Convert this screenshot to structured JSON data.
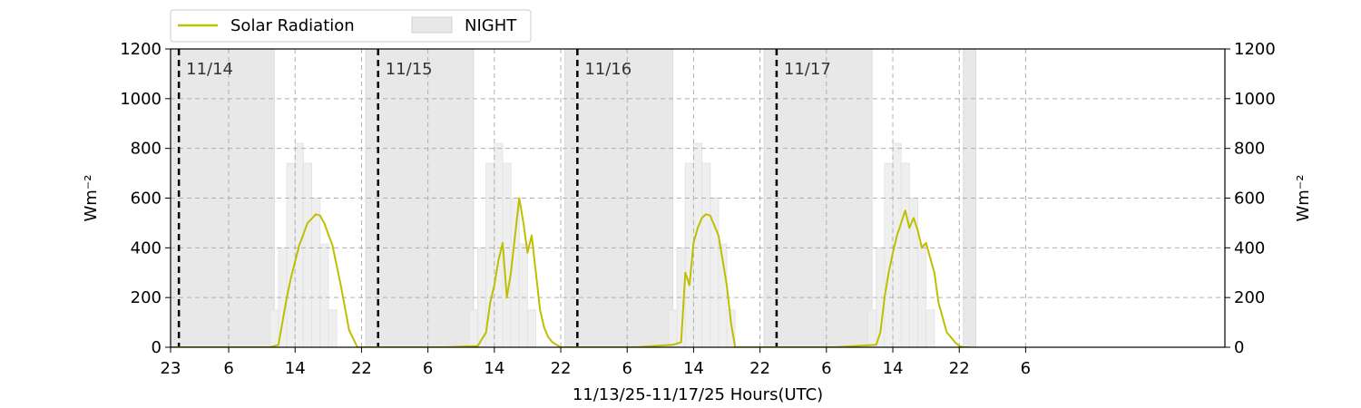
{
  "chart_data": {
    "type": "line",
    "title": "",
    "xlabel": "11/13/25-11/17/25  Hours(UTC)",
    "ylabel_left": "Wm⁻²",
    "ylabel_right": "Wm⁻²",
    "ylim": [
      0,
      1200
    ],
    "yticks": [
      0,
      200,
      400,
      600,
      800,
      1000,
      1200
    ],
    "x_unit": "hours since 11/13/25 23:00 UTC",
    "xlim": [
      0,
      127
    ],
    "xticks": [
      {
        "x": 0,
        "label": "23"
      },
      {
        "x": 7,
        "label": "6"
      },
      {
        "x": 15,
        "label": "14"
      },
      {
        "x": 23,
        "label": "22"
      },
      {
        "x": 31,
        "label": "6"
      },
      {
        "x": 39,
        "label": "14"
      },
      {
        "x": 47,
        "label": "22"
      },
      {
        "x": 55,
        "label": "6"
      },
      {
        "x": 63,
        "label": "14"
      },
      {
        "x": 71,
        "label": "22"
      },
      {
        "x": 79,
        "label": "6"
      },
      {
        "x": 87,
        "label": "14"
      },
      {
        "x": 95,
        "label": "22"
      },
      {
        "x": 103,
        "label": "6"
      }
    ],
    "grid": true,
    "legend": {
      "placement": "top-left-outside",
      "entries": [
        {
          "label": "Solar Radiation",
          "color": "#bfbf00",
          "kind": "line"
        },
        {
          "label": "NIGHT",
          "color": "#e8e8e8",
          "kind": "patch"
        }
      ]
    },
    "day_markers": [
      {
        "x": 1,
        "label": "11/14"
      },
      {
        "x": 25,
        "label": "11/15"
      },
      {
        "x": 49,
        "label": "11/16"
      },
      {
        "x": 73,
        "label": "11/17"
      }
    ],
    "night_spans": [
      [
        0,
        12.5
      ],
      [
        23.5,
        36.5
      ],
      [
        47.5,
        60.5
      ],
      [
        71.5,
        84.5
      ],
      [
        95.5,
        97
      ]
    ],
    "clear_sky_steps": {
      "offsets": [
        -0.5,
        0.5,
        1.5,
        2.5,
        3.5,
        4.5,
        5.5,
        6.5,
        7.5,
        8.5
      ],
      "values": [
        150,
        400,
        740,
        820,
        740,
        600,
        415,
        150,
        0,
        0
      ],
      "day_starts": [
        12.5,
        36.5,
        60.5,
        84.5
      ]
    },
    "series": [
      {
        "name": "Solar Radiation",
        "color": "#bfbf00",
        "x": [
          0,
          4,
          8,
          12,
          13,
          14,
          14.5,
          15.5,
          16.5,
          17.5,
          18,
          18.5,
          19.5,
          20.5,
          21.5,
          22.5,
          23.0,
          25,
          29,
          33,
          37,
          38,
          38.5,
          39,
          39.5,
          40,
          40.5,
          41,
          41.5,
          42,
          42.5,
          43,
          43.5,
          44,
          44.5,
          45,
          45.5,
          46,
          46.5,
          47,
          47.3,
          48.5,
          52,
          56,
          60.5,
          61.5,
          62,
          62.5,
          63,
          63.5,
          64,
          64.5,
          65,
          66,
          67,
          67.5,
          68,
          69,
          70,
          70.5,
          71.0,
          75,
          80,
          85,
          85.5,
          86,
          86.5,
          87,
          87.5,
          88,
          88.5,
          89,
          89.5,
          90,
          90.5,
          91,
          91.5,
          92,
          92.5,
          93,
          93.5,
          94,
          94.5,
          95,
          95.5,
          96,
          96.3
        ],
        "values": [
          0,
          0,
          0,
          0,
          10,
          200,
          280,
          410,
          500,
          535,
          530,
          500,
          410,
          250,
          70,
          0,
          0,
          0,
          0,
          0,
          5,
          60,
          180,
          250,
          350,
          420,
          200,
          300,
          450,
          600,
          500,
          380,
          450,
          300,
          150,
          80,
          40,
          20,
          10,
          0,
          0,
          0,
          0,
          0,
          10,
          20,
          300,
          250,
          420,
          480,
          520,
          535,
          530,
          450,
          250,
          100,
          0,
          0,
          0,
          0,
          0,
          0,
          0,
          10,
          60,
          200,
          300,
          380,
          450,
          500,
          550,
          480,
          520,
          470,
          400,
          420,
          360,
          300,
          180,
          120,
          60,
          40,
          20,
          5,
          0,
          0,
          0
        ]
      }
    ]
  }
}
